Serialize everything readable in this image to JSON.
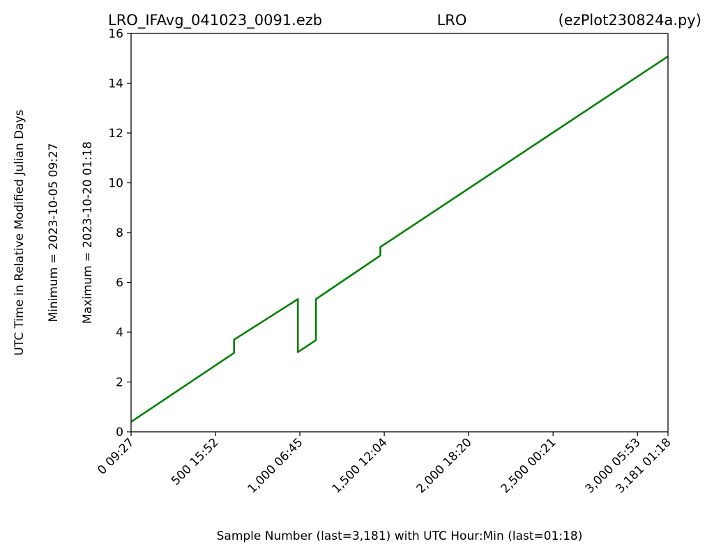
{
  "title": {
    "left": "LRO_IFAvg_041023_0091.ezb",
    "center": "LRO",
    "right": "(ezPlot230824a.py)"
  },
  "ylabel": "UTC Time in Relative Modified Julian Days",
  "ylabel2": "Minimum = 2023-10-05   09:27",
  "ylabel3": "Maximum = 2023-10-20   01:18",
  "xlabel": "Sample Number (last=3,181) with UTC Hour:Min (last=01:18)",
  "colors": {
    "line": "#008000",
    "axes": "#000000",
    "background": "#ffffff"
  },
  "chart_data": {
    "type": "line",
    "xlim": [
      0,
      3181
    ],
    "ylim": [
      0,
      16
    ],
    "grid": false,
    "yticks": [
      0,
      2,
      4,
      6,
      8,
      10,
      12,
      14,
      16
    ],
    "ytick_labels": [
      "0",
      "2",
      "4",
      "6",
      "8",
      "10",
      "12",
      "14",
      "16"
    ],
    "xticks": [
      0,
      500,
      1000,
      1500,
      2000,
      2500,
      3000,
      3181
    ],
    "xtick_labels": [
      "0  09:27",
      "500  15:52",
      "1,000  06:45",
      "1,500  12:04",
      "2,000  18:20",
      "2,500  00:21",
      "3,000  05:53",
      "3,181  01:18"
    ],
    "series": [
      {
        "color": "#008000",
        "x": [
          0,
          610,
          610,
          988,
          988,
          1095,
          1095,
          1477,
          1477,
          3181
        ],
        "y": [
          0.4,
          3.17,
          3.7,
          5.33,
          3.2,
          3.68,
          5.33,
          7.08,
          7.42,
          15.08
        ]
      }
    ]
  }
}
